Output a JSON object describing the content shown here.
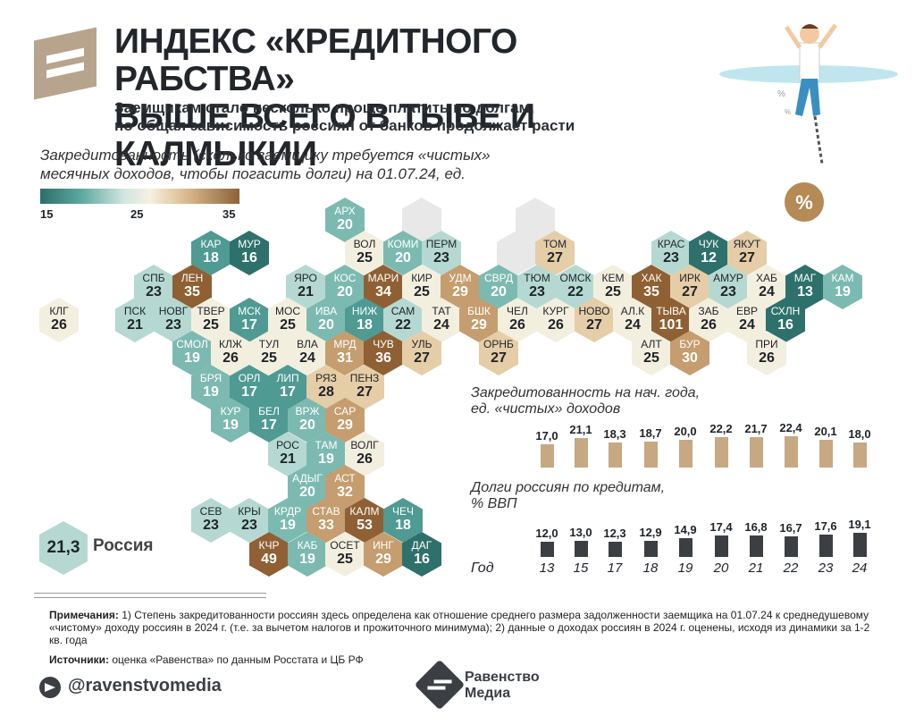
{
  "header": {
    "title_line1": "ИНДЕКС «КРЕДИТНОГО РАБСТВА»",
    "title_line2": "ВЫШЕ ВСЕГО В ТЫВЕ И КАЛМЫКИИ",
    "subtitle_line1": "Заемщикам стало несколько проще платить по долгам,",
    "subtitle_line2": "но общая зависимость россиян от банков продолжает расти"
  },
  "map": {
    "title_line1": "Закредитованность (сколько заемщику требуется «чистых»",
    "title_line2": "месячных доходов, чтобы погасить долги) на 01.07.24, ед.",
    "legend": {
      "min": "15",
      "mid": "25",
      "max": "35",
      "colors": [
        "#2d6e6a",
        "#5aa79e",
        "#cfe6e0",
        "#f6f1e0",
        "#d7b487",
        "#8c6238"
      ]
    },
    "regions": [
      {
        "ab": "АРХ",
        "v": "20",
        "c": "c3"
      },
      {
        "ab": "ВОЛ",
        "v": "25",
        "c": "c5"
      },
      {
        "ab": "КОМИ",
        "v": "20",
        "c": "c3"
      },
      {
        "ab": "ПЕРМ",
        "v": "23",
        "c": "c4"
      },
      {
        "ab": "ТОМ",
        "v": "27",
        "c": "c6"
      },
      {
        "ab": "КРАС",
        "v": "23",
        "c": "c4"
      },
      {
        "ab": "ЧУК",
        "v": "12",
        "c": "c1"
      },
      {
        "ab": "ЯКУТ",
        "v": "27",
        "c": "c6"
      },
      {
        "ab": "КАР",
        "v": "18",
        "c": "c2"
      },
      {
        "ab": "МУР",
        "v": "16",
        "c": "c1"
      },
      {
        "ab": "СПБ",
        "v": "23",
        "c": "c4"
      },
      {
        "ab": "ЛЕН",
        "v": "35",
        "c": "c8"
      },
      {
        "ab": "ЯРО",
        "v": "21",
        "c": "c4"
      },
      {
        "ab": "КОС",
        "v": "20",
        "c": "c3"
      },
      {
        "ab": "МАРИ",
        "v": "34",
        "c": "c8"
      },
      {
        "ab": "КИР",
        "v": "25",
        "c": "c5"
      },
      {
        "ab": "УДМ",
        "v": "29",
        "c": "c7"
      },
      {
        "ab": "СВРД",
        "v": "20",
        "c": "c3"
      },
      {
        "ab": "ТЮМ",
        "v": "23",
        "c": "c4"
      },
      {
        "ab": "ОМСК",
        "v": "22",
        "c": "c4"
      },
      {
        "ab": "КЕМ",
        "v": "25",
        "c": "c5"
      },
      {
        "ab": "ХАК",
        "v": "35",
        "c": "c8"
      },
      {
        "ab": "ИРК",
        "v": "27",
        "c": "c6"
      },
      {
        "ab": "АМУР",
        "v": "23",
        "c": "c4"
      },
      {
        "ab": "ХАБ",
        "v": "24",
        "c": "c5"
      },
      {
        "ab": "МАГ",
        "v": "13",
        "c": "c1"
      },
      {
        "ab": "КАМ",
        "v": "19",
        "c": "c3"
      },
      {
        "ab": "КЛГ",
        "v": "26",
        "c": "c5"
      },
      {
        "ab": "ПСК",
        "v": "21",
        "c": "c4"
      },
      {
        "ab": "НОВГ",
        "v": "23",
        "c": "c4"
      },
      {
        "ab": "ТВЕР",
        "v": "25",
        "c": "c5"
      },
      {
        "ab": "МСК",
        "v": "17",
        "c": "c2"
      },
      {
        "ab": "МОС",
        "v": "25",
        "c": "c5"
      },
      {
        "ab": "ИВА",
        "v": "20",
        "c": "c3"
      },
      {
        "ab": "НИЖ",
        "v": "18",
        "c": "c2"
      },
      {
        "ab": "САМ",
        "v": "22",
        "c": "c4"
      },
      {
        "ab": "ТАТ",
        "v": "24",
        "c": "c5"
      },
      {
        "ab": "БШК",
        "v": "29",
        "c": "c7"
      },
      {
        "ab": "ЧЕЛ",
        "v": "26",
        "c": "c5"
      },
      {
        "ab": "КУРГ",
        "v": "26",
        "c": "c5"
      },
      {
        "ab": "НОВО",
        "v": "27",
        "c": "c6"
      },
      {
        "ab": "АЛ.К",
        "v": "24",
        "c": "c5"
      },
      {
        "ab": "ТЫВА",
        "v": "101",
        "c": "c8"
      },
      {
        "ab": "ЗАБ",
        "v": "26",
        "c": "c5"
      },
      {
        "ab": "ЕВР",
        "v": "24",
        "c": "c5"
      },
      {
        "ab": "СХЛН",
        "v": "16",
        "c": "c1"
      },
      {
        "ab": "СМОЛ",
        "v": "19",
        "c": "c3"
      },
      {
        "ab": "КЛЖ",
        "v": "26",
        "c": "c5"
      },
      {
        "ab": "ТУЛ",
        "v": "25",
        "c": "c5"
      },
      {
        "ab": "ВЛА",
        "v": "24",
        "c": "c5"
      },
      {
        "ab": "МРД",
        "v": "31",
        "c": "c7"
      },
      {
        "ab": "ЧУВ",
        "v": "36",
        "c": "c8"
      },
      {
        "ab": "УЛЬ",
        "v": "27",
        "c": "c6"
      },
      {
        "ab": "ОРНБ",
        "v": "27",
        "c": "c6"
      },
      {
        "ab": "АЛТ",
        "v": "25",
        "c": "c5"
      },
      {
        "ab": "БУР",
        "v": "30",
        "c": "c7"
      },
      {
        "ab": "ПРИ",
        "v": "26",
        "c": "c5"
      },
      {
        "ab": "БРЯ",
        "v": "19",
        "c": "c3"
      },
      {
        "ab": "ОРЛ",
        "v": "17",
        "c": "c2"
      },
      {
        "ab": "ЛИП",
        "v": "17",
        "c": "c2"
      },
      {
        "ab": "РЯЗ",
        "v": "28",
        "c": "c6"
      },
      {
        "ab": "ПЕНЗ",
        "v": "27",
        "c": "c6"
      },
      {
        "ab": "КУР",
        "v": "19",
        "c": "c3"
      },
      {
        "ab": "БЕЛ",
        "v": "17",
        "c": "c2"
      },
      {
        "ab": "ВРЖ",
        "v": "20",
        "c": "c3"
      },
      {
        "ab": "САР",
        "v": "29",
        "c": "c7"
      },
      {
        "ab": "РОС",
        "v": "21",
        "c": "c4"
      },
      {
        "ab": "ТАМ",
        "v": "19",
        "c": "c3"
      },
      {
        "ab": "ВОЛГ",
        "v": "26",
        "c": "c5"
      },
      {
        "ab": "АДЫГ",
        "v": "20",
        "c": "c3"
      },
      {
        "ab": "АСТ",
        "v": "32",
        "c": "c7"
      },
      {
        "ab": "СЕВ",
        "v": "23",
        "c": "c4"
      },
      {
        "ab": "КРЫ",
        "v": "23",
        "c": "c4"
      },
      {
        "ab": "КРДР",
        "v": "19",
        "c": "c3"
      },
      {
        "ab": "СТАВ",
        "v": "33",
        "c": "c7"
      },
      {
        "ab": "КАЛМ",
        "v": "53",
        "c": "c8"
      },
      {
        "ab": "ЧЕЧ",
        "v": "18",
        "c": "c2"
      },
      {
        "ab": "КЧР",
        "v": "49",
        "c": "c8"
      },
      {
        "ab": "КАБ",
        "v": "19",
        "c": "c3"
      },
      {
        "ab": "ОСЕТ",
        "v": "25",
        "c": "c5"
      },
      {
        "ab": "ИНГ",
        "v": "29",
        "c": "c7"
      },
      {
        "ab": "ДАГ",
        "v": "16",
        "c": "c1"
      }
    ],
    "russia": {
      "value": "21,3",
      "label": "Россия"
    }
  },
  "chart_data": [
    {
      "type": "bar",
      "title": "Закредитованность на нач. года, ед. «чистых» доходов",
      "categories": [
        "13",
        "15",
        "17",
        "18",
        "19",
        "20",
        "21",
        "22",
        "23",
        "24"
      ],
      "values": [
        17.0,
        21.1,
        18.3,
        18.7,
        20.0,
        22.2,
        21.7,
        22.4,
        20.1,
        18.0
      ],
      "labels": [
        "17,0",
        "21,1",
        "18,3",
        "18,7",
        "20,0",
        "22,2",
        "21,7",
        "22,4",
        "20,1",
        "18,0"
      ],
      "color": "#c6a882"
    },
    {
      "type": "bar",
      "title": "Долги россиян по кредитам, % ВВП",
      "xlabel": "Год",
      "categories": [
        "13",
        "15",
        "17",
        "18",
        "19",
        "20",
        "21",
        "22",
        "23",
        "24"
      ],
      "values": [
        12.0,
        13.0,
        12.3,
        12.9,
        14.9,
        17.4,
        16.8,
        16.7,
        17.6,
        19.1
      ],
      "labels": [
        "12,0",
        "13,0",
        "12,3",
        "12,9",
        "14,9",
        "17,4",
        "16,8",
        "16,7",
        "17,6",
        "19,1"
      ],
      "color": "#3b3f44"
    }
  ],
  "charts_text": {
    "c1_title_line1": "Закредитованность на нач. года,",
    "c1_title_line2": "ед. «чистых» доходов",
    "c2_title_line1": "Долги россиян по кредитам,",
    "c2_title_line2": "% ВВП",
    "year_label": "Год"
  },
  "footer": {
    "notes_label": "Примечания:",
    "notes_text": " 1) Степень закредитованности россиян здесь определена как отношение среднего размера задолженности заемщика на 01.07.24 к среднедушевому «чистому» доходу россиян в 2024 г. (т.е. за вычетом налогов и прожиточного минимума); 2) данные о доходах россиян в 2024 г. оценены, исходя из динамики за 1-2 кв. года",
    "sources_label": "Источники:",
    "sources_text": " оценка «Равенства» по данным Росстата и ЦБ РФ",
    "handle": "@ravenstvomedia",
    "brand_line1": "Равенство",
    "brand_line2": "Медиа"
  }
}
